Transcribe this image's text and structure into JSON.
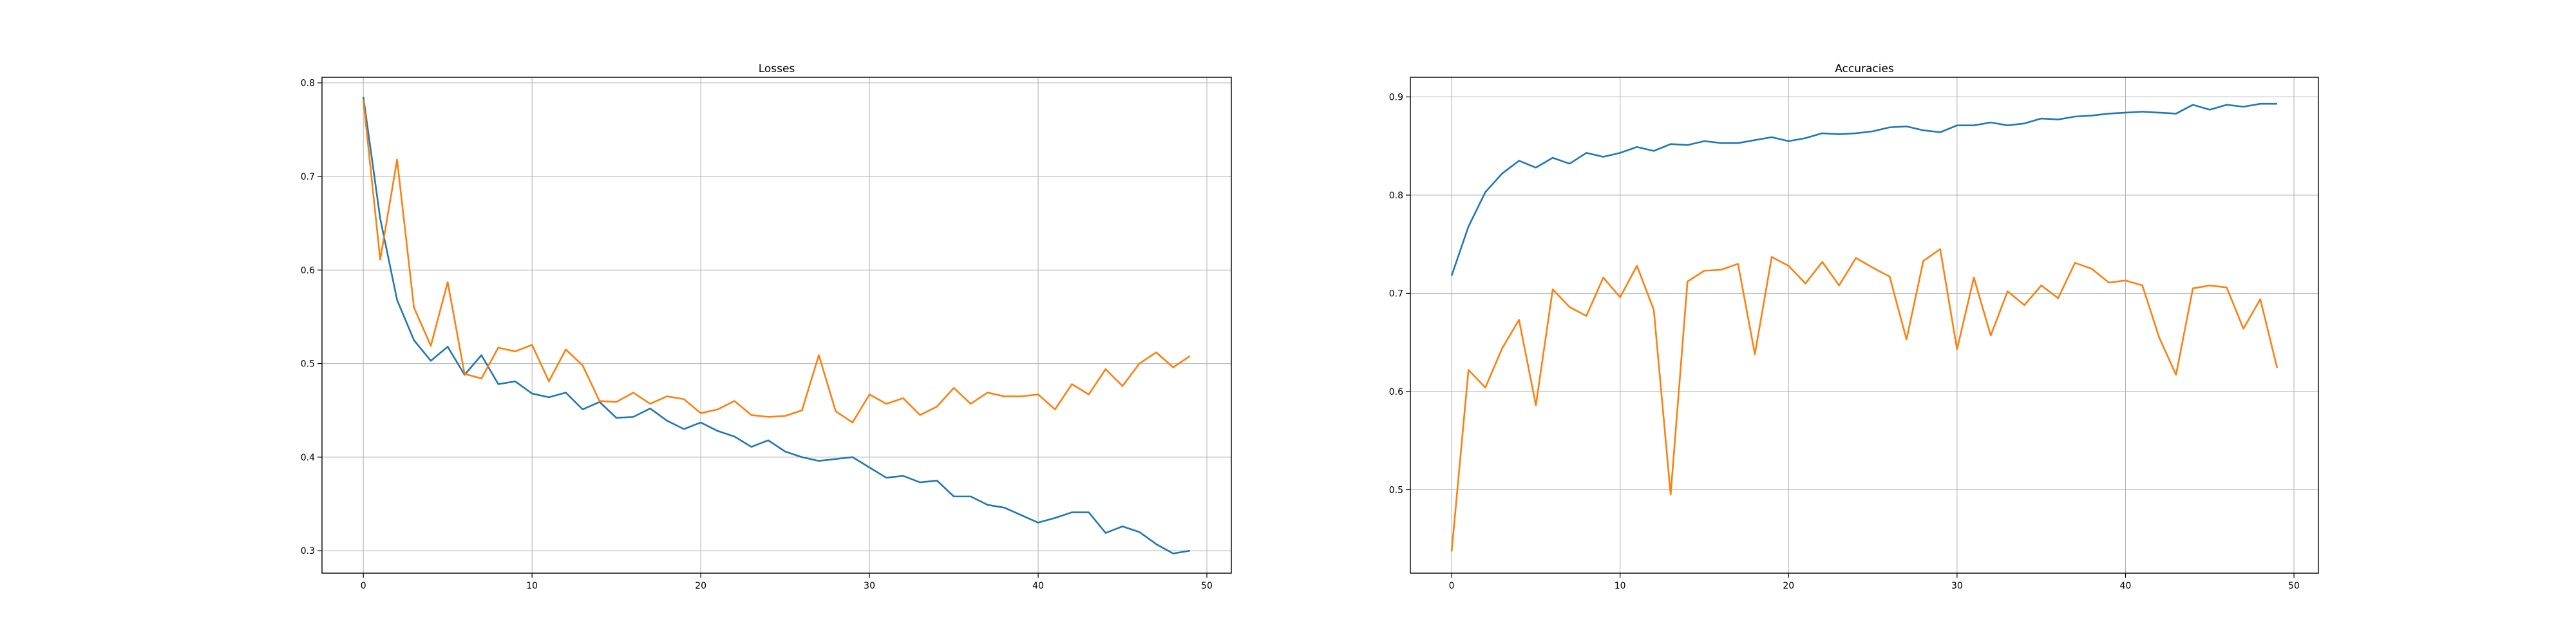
{
  "chart_data": [
    {
      "type": "line",
      "title": "Losses",
      "xlabel": "",
      "ylabel": "",
      "xlim": [
        -2.45,
        51.45
      ],
      "ylim": [
        0.276,
        0.806
      ],
      "xticks": [
        0,
        10,
        20,
        30,
        40,
        50
      ],
      "yticks": [
        0.3,
        0.4,
        0.5,
        0.6,
        0.7,
        0.8
      ],
      "grid": true,
      "x": [
        0,
        1,
        2,
        3,
        4,
        5,
        6,
        7,
        8,
        9,
        10,
        11,
        12,
        13,
        14,
        15,
        16,
        17,
        18,
        19,
        20,
        21,
        22,
        23,
        24,
        25,
        26,
        27,
        28,
        29,
        30,
        31,
        32,
        33,
        34,
        35,
        36,
        37,
        38,
        39,
        40,
        41,
        42,
        43,
        44,
        45,
        46,
        47,
        48,
        49
      ],
      "series": [
        {
          "color": "#1f77b4",
          "values": [
            0.785,
            0.655,
            0.568,
            0.525,
            0.503,
            0.518,
            0.488,
            0.509,
            0.478,
            0.481,
            0.468,
            0.464,
            0.469,
            0.451,
            0.459,
            0.442,
            0.443,
            0.452,
            0.439,
            0.43,
            0.437,
            0.428,
            0.422,
            0.411,
            0.418,
            0.406,
            0.4,
            0.396,
            0.398,
            0.4,
            0.389,
            0.378,
            0.38,
            0.373,
            0.375,
            0.358,
            0.358,
            0.349,
            0.346,
            0.338,
            0.33,
            0.335,
            0.341,
            0.341,
            0.319,
            0.326,
            0.32,
            0.307,
            0.297,
            0.3
          ]
        },
        {
          "color": "#ff7f0e",
          "values": [
            0.782,
            0.611,
            0.718,
            0.56,
            0.519,
            0.587,
            0.489,
            0.484,
            0.517,
            0.513,
            0.52,
            0.481,
            0.515,
            0.498,
            0.46,
            0.459,
            0.469,
            0.457,
            0.465,
            0.462,
            0.447,
            0.451,
            0.46,
            0.445,
            0.443,
            0.444,
            0.45,
            0.509,
            0.449,
            0.437,
            0.467,
            0.457,
            0.463,
            0.445,
            0.454,
            0.474,
            0.457,
            0.469,
            0.465,
            0.465,
            0.467,
            0.451,
            0.478,
            0.467,
            0.494,
            0.476,
            0.5,
            0.512,
            0.496,
            0.508
          ]
        }
      ]
    },
    {
      "type": "line",
      "title": "Accuracies",
      "xlabel": "",
      "ylabel": "",
      "xlim": [
        -2.45,
        51.45
      ],
      "ylim": [
        0.415,
        0.92
      ],
      "xticks": [
        0,
        10,
        20,
        30,
        40,
        50
      ],
      "yticks": [
        0.5,
        0.6,
        0.7,
        0.8,
        0.9
      ],
      "grid": true,
      "x": [
        0,
        1,
        2,
        3,
        4,
        5,
        6,
        7,
        8,
        9,
        10,
        11,
        12,
        13,
        14,
        15,
        16,
        17,
        18,
        19,
        20,
        21,
        22,
        23,
        24,
        25,
        26,
        27,
        28,
        29,
        30,
        31,
        32,
        33,
        34,
        35,
        36,
        37,
        38,
        39,
        40,
        41,
        42,
        43,
        44,
        45,
        46,
        47,
        48,
        49
      ],
      "series": [
        {
          "color": "#1f77b4",
          "values": [
            0.718,
            0.768,
            0.803,
            0.822,
            0.835,
            0.828,
            0.838,
            0.832,
            0.843,
            0.839,
            0.843,
            0.849,
            0.845,
            0.852,
            0.851,
            0.855,
            0.853,
            0.853,
            0.856,
            0.859,
            0.855,
            0.858,
            0.863,
            0.862,
            0.863,
            0.865,
            0.869,
            0.87,
            0.866,
            0.864,
            0.871,
            0.871,
            0.874,
            0.871,
            0.873,
            0.878,
            0.877,
            0.88,
            0.881,
            0.883,
            0.884,
            0.885,
            0.884,
            0.883,
            0.892,
            0.887,
            0.892,
            0.89,
            0.893,
            0.893
          ]
        },
        {
          "color": "#ff7f0e",
          "values": [
            0.437,
            0.622,
            0.604,
            0.644,
            0.673,
            0.586,
            0.704,
            0.686,
            0.677,
            0.716,
            0.696,
            0.728,
            0.683,
            0.495,
            0.712,
            0.723,
            0.724,
            0.73,
            0.638,
            0.737,
            0.728,
            0.71,
            0.732,
            0.708,
            0.736,
            0.726,
            0.717,
            0.653,
            0.733,
            0.745,
            0.643,
            0.716,
            0.657,
            0.702,
            0.688,
            0.708,
            0.695,
            0.731,
            0.725,
            0.711,
            0.713,
            0.708,
            0.655,
            0.617,
            0.705,
            0.708,
            0.706,
            0.664,
            0.694,
            0.624
          ]
        }
      ]
    }
  ]
}
